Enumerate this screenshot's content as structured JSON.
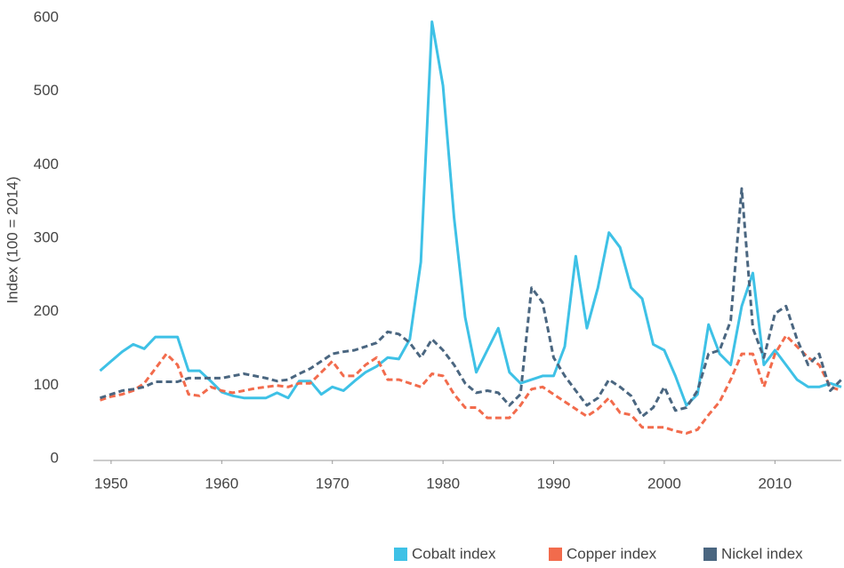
{
  "chart_data": {
    "type": "line",
    "ylabel": "Index (100 = 2014)",
    "x": [
      1949,
      1950,
      1951,
      1952,
      1953,
      1954,
      1955,
      1956,
      1957,
      1958,
      1959,
      1960,
      1961,
      1962,
      1963,
      1964,
      1965,
      1966,
      1967,
      1968,
      1969,
      1970,
      1971,
      1972,
      1973,
      1974,
      1975,
      1976,
      1977,
      1978,
      1979,
      1980,
      1981,
      1982,
      1983,
      1984,
      1985,
      1986,
      1987,
      1988,
      1989,
      1990,
      1991,
      1992,
      1993,
      1994,
      1995,
      1996,
      1997,
      1998,
      1999,
      2000,
      2001,
      2002,
      2003,
      2004,
      2005,
      2006,
      2007,
      2008,
      2009,
      2010,
      2011,
      2012,
      2013,
      2014,
      2015,
      2016
    ],
    "series": [
      {
        "name": "Cobalt index",
        "color": "#3ec1e6",
        "linestyle": "solid",
        "values": [
          122,
          135,
          148,
          158,
          152,
          168,
          168,
          168,
          122,
          122,
          108,
          93,
          88,
          85,
          85,
          85,
          92,
          85,
          108,
          108,
          90,
          100,
          95,
          108,
          120,
          128,
          140,
          138,
          165,
          270,
          597,
          510,
          330,
          195,
          120,
          150,
          180,
          120,
          105,
          110,
          115,
          115,
          155,
          278,
          180,
          235,
          310,
          290,
          235,
          220,
          158,
          150,
          115,
          75,
          90,
          185,
          145,
          130,
          210,
          255,
          130,
          150,
          130,
          110,
          100,
          100,
          105,
          100
        ]
      },
      {
        "name": "Copper index",
        "color": "#f26b4c",
        "linestyle": "dashed",
        "values": [
          82,
          87,
          90,
          95,
          105,
          125,
          145,
          130,
          90,
          88,
          100,
          95,
          92,
          95,
          98,
          100,
          102,
          100,
          105,
          105,
          120,
          135,
          115,
          115,
          130,
          140,
          110,
          110,
          105,
          100,
          118,
          115,
          90,
          72,
          72,
          58,
          58,
          58,
          75,
          97,
          100,
          90,
          80,
          70,
          60,
          70,
          85,
          65,
          62,
          45,
          45,
          45,
          40,
          37,
          42,
          62,
          80,
          110,
          145,
          145,
          100,
          145,
          170,
          155,
          140,
          130,
          100,
          95
        ]
      },
      {
        "name": "Nickel index",
        "color": "#4a6680",
        "linestyle": "dashed",
        "values": [
          85,
          90,
          95,
          97,
          100,
          107,
          107,
          107,
          112,
          112,
          112,
          112,
          115,
          118,
          115,
          112,
          108,
          110,
          118,
          125,
          135,
          145,
          148,
          150,
          155,
          160,
          175,
          172,
          160,
          140,
          165,
          150,
          130,
          105,
          92,
          95,
          92,
          75,
          90,
          235,
          215,
          140,
          115,
          95,
          75,
          85,
          110,
          100,
          88,
          60,
          72,
          100,
          68,
          72,
          95,
          145,
          150,
          190,
          370,
          180,
          140,
          200,
          210,
          165,
          130,
          145,
          95,
          110
        ]
      }
    ],
    "xlim": [
      1948.4,
      2016
    ],
    "xticks": [
      1950,
      1960,
      1970,
      1980,
      1990,
      2000,
      2010
    ],
    "ylim": [
      0,
      600
    ],
    "yticks": [
      0,
      100,
      200,
      300,
      400,
      500,
      600
    ],
    "grid": false,
    "legend": "bottom-right"
  }
}
